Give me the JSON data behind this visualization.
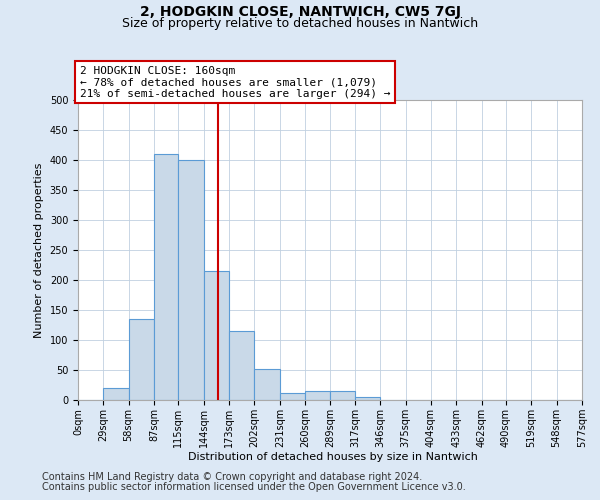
{
  "title": "2, HODGKIN CLOSE, NANTWICH, CW5 7GJ",
  "subtitle": "Size of property relative to detached houses in Nantwich",
  "xlabel": "Distribution of detached houses by size in Nantwich",
  "ylabel": "Number of detached properties",
  "bin_edges": [
    0,
    29,
    58,
    87,
    115,
    144,
    173,
    202,
    231,
    260,
    289,
    317,
    346,
    375,
    404,
    433,
    462,
    490,
    519,
    548,
    577
  ],
  "bar_heights": [
    0,
    20,
    135,
    410,
    400,
    215,
    115,
    52,
    12,
    15,
    15,
    5,
    0,
    0,
    0,
    0,
    0,
    0,
    0,
    0
  ],
  "bar_color": "#c9d9e8",
  "bar_edgecolor": "#5b9bd5",
  "property_size": 160,
  "vline_color": "#cc0000",
  "annotation_line1": "2 HODGKIN CLOSE: 160sqm",
  "annotation_line2": "← 78% of detached houses are smaller (1,079)",
  "annotation_line3": "21% of semi-detached houses are larger (294) →",
  "annotation_box_edgecolor": "#cc0000",
  "ylim": [
    0,
    500
  ],
  "yticks": [
    0,
    50,
    100,
    150,
    200,
    250,
    300,
    350,
    400,
    450,
    500
  ],
  "background_color": "#dce8f5",
  "plot_background": "#ffffff",
  "footer_line1": "Contains HM Land Registry data © Crown copyright and database right 2024.",
  "footer_line2": "Contains public sector information licensed under the Open Government Licence v3.0.",
  "title_fontsize": 10,
  "subtitle_fontsize": 9,
  "annotation_fontsize": 8,
  "footer_fontsize": 7,
  "ylabel_fontsize": 8,
  "xlabel_fontsize": 8,
  "tick_fontsize": 7
}
